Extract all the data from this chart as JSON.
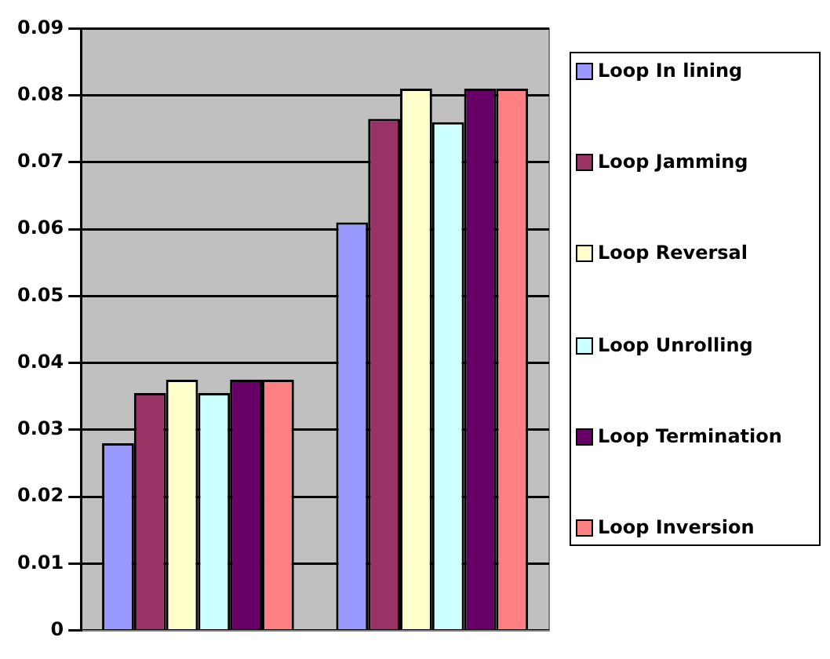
{
  "chart_data": {
    "type": "bar",
    "categories": [
      null,
      null
    ],
    "series": [
      {
        "name": "Loop In lining",
        "color": "#9999ff",
        "values": [
          0.028,
          0.061
        ]
      },
      {
        "name": "Loop Jamming",
        "color": "#993366",
        "values": [
          0.0355,
          0.0765
        ]
      },
      {
        "name": "Loop Reversal",
        "color": "#ffffcc",
        "values": [
          0.0375,
          0.081
        ]
      },
      {
        "name": "Loop Unrolling",
        "color": "#ccffff",
        "values": [
          0.0355,
          0.076
        ]
      },
      {
        "name": "Loop Termination",
        "color": "#660066",
        "values": [
          0.0375,
          0.081
        ]
      },
      {
        "name": "Loop Inversion",
        "color": "#ff8080",
        "values": [
          0.0375,
          0.081
        ]
      }
    ],
    "ylim": [
      0,
      0.09
    ],
    "yticks": [
      0,
      0.01,
      0.02,
      0.03,
      0.04,
      0.05,
      0.06,
      0.07,
      0.08,
      0.09
    ],
    "grid": "y",
    "legend": "right"
  }
}
